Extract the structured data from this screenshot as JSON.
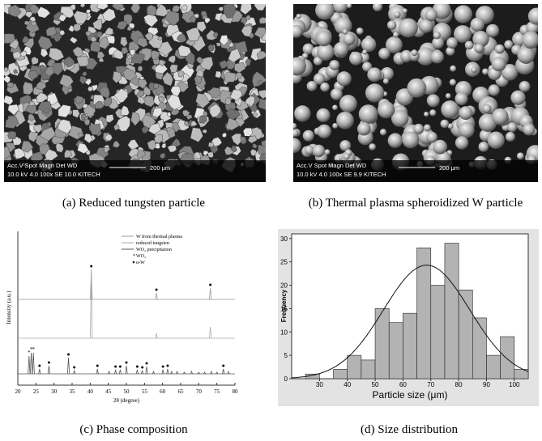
{
  "panels": [
    {
      "caption": "(a) Reduced tungsten particle",
      "sem": {
        "line1": "Acc.V  Spot Magn    Det  WD",
        "line2": "10.0 kV 4.0    100x     SE   10.0  KITECH",
        "scale": "200 μm"
      }
    },
    {
      "caption": "(b) Thermal plasma spheroidized W particle",
      "sem": {
        "line1": "Acc.V  Spot Magn    Det  WD",
        "line2": "10.0 kV 4.0    100x     SE   9.9    KITECH",
        "scale": "200 μm"
      }
    },
    {
      "caption": "(c) Phase composition",
      "chart": {
        "type": "xrd",
        "xlabel": "2θ (degree)",
        "ylabel": "Intensity (a.u.)",
        "xlim": [
          20,
          80
        ],
        "xticks": [
          20,
          25,
          30,
          35,
          40,
          45,
          50,
          55,
          60,
          65,
          70,
          75,
          80
        ],
        "ylim": [
          0,
          190
        ],
        "legend": [
          "WO₂",
          "α-W"
        ],
        "series": [
          {
            "name": "W from thermal plasma",
            "color": "#999999",
            "offset": 106,
            "x": [
              40.3,
              58.3,
              73.2
            ],
            "values": [
              37,
              8,
              14
            ]
          },
          {
            "name": "reduced tungsten",
            "color": "#aaaaaa",
            "offset": 58,
            "x": [
              40.3,
              58.3,
              73.2
            ],
            "values": [
              85,
              6,
              14
            ]
          },
          {
            "name": "WO₂ precipitation",
            "color": "#555555",
            "offset": 14,
            "x": [
              23.1,
              23.7,
              24.3,
              26.0,
              28.6,
              34.0,
              35.6,
              42.0,
              45.2,
              47.0,
              48.3,
              50.0,
              53.0,
              54.4,
              55.6,
              57.5,
              60.1,
              61.4,
              62.5,
              64.0,
              66.0,
              68.0,
              70.0,
              71.6,
              73.5,
              75.0,
              76.8,
              78.2
            ],
            "values": [
              22,
              26,
              26,
              6,
              10,
              20,
              4,
              6,
              3,
              5,
              5,
              10,
              5,
              4,
              9,
              3,
              5,
              6,
              3,
              3,
              2,
              3,
              2,
              2,
              3,
              2,
              6,
              3
            ]
          }
        ]
      }
    },
    {
      "caption": "(d) Size distribution",
      "chart": {
        "type": "histogram",
        "xlabel": "Particle size (μm)",
        "ylabel": "Frequency",
        "bins": [
          25,
          30,
          35,
          40,
          45,
          50,
          55,
          60,
          65,
          70,
          75,
          80,
          85,
          90,
          95,
          100,
          105
        ],
        "counts": [
          1,
          0,
          2,
          5,
          4,
          15,
          12,
          14,
          28,
          20,
          29,
          19,
          13,
          5,
          9,
          2
        ],
        "color": "#b3b3b3",
        "xlim": [
          20,
          105
        ],
        "xticks": [
          30,
          40,
          50,
          60,
          70,
          80,
          90,
          100
        ],
        "ylim": [
          0,
          31
        ],
        "yticks": [
          0,
          5,
          10,
          15,
          20,
          25,
          30
        ],
        "fit": {
          "mean": 68.5,
          "sd": 15.5,
          "peak": 24.3
        }
      }
    }
  ]
}
